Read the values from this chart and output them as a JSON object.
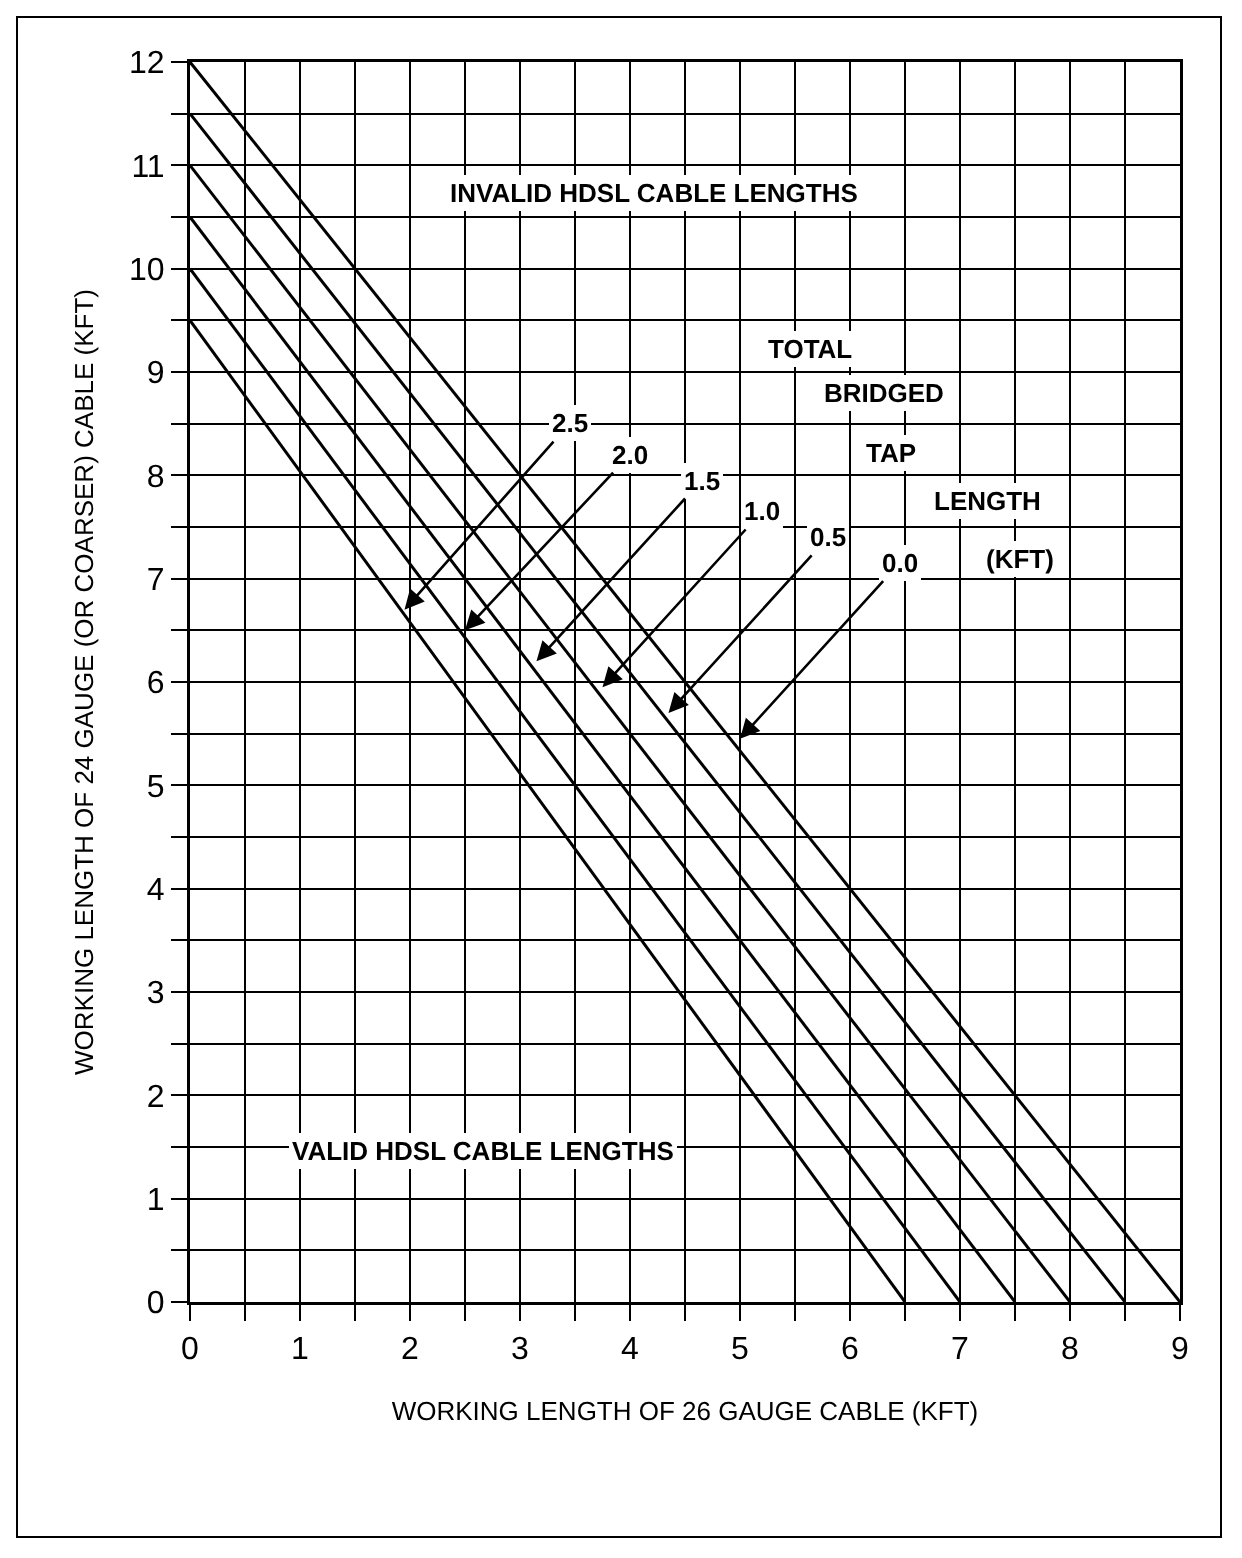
{
  "chart_data": {
    "type": "line",
    "xlabel": "WORKING LENGTH OF 26 GAUGE CABLE (KFT)",
    "ylabel": "WORKING LENGTH OF 24 GAUGE (OR COARSER) CABLE (KFT)",
    "series": [
      {
        "color": "#000000",
        "x": [
          0,
          9
        ],
        "values": [
          12,
          0
        ]
      },
      {
        "color": "#000000",
        "x": [
          0,
          8.5
        ],
        "values": [
          11.5,
          0
        ]
      },
      {
        "color": "#000000",
        "x": [
          0,
          8
        ],
        "values": [
          11,
          0
        ]
      },
      {
        "color": "#000000",
        "x": [
          0,
          7.5
        ],
        "values": [
          10.5,
          0
        ]
      },
      {
        "color": "#000000",
        "x": [
          0,
          7
        ],
        "values": [
          10,
          0
        ]
      },
      {
        "color": "#000000",
        "x": [
          0,
          6.5
        ],
        "values": [
          9.5,
          0
        ]
      }
    ],
    "xlim": [
      0,
      9
    ],
    "ylim": [
      0,
      12
    ],
    "xticks": [
      0,
      {
        "value": 0.5,
        "label": null
      },
      1,
      {
        "value": 1.5,
        "label": null
      },
      2,
      {
        "value": 2.5,
        "label": null
      },
      3,
      {
        "value": 3.5,
        "label": null
      },
      4,
      {
        "value": 4.5,
        "label": null
      },
      5,
      {
        "value": 5.5,
        "label": null
      },
      6,
      {
        "value": 6.5,
        "label": null
      },
      7,
      {
        "value": 7.5,
        "label": null
      },
      8,
      {
        "value": 8.5,
        "label": null
      },
      9
    ],
    "yticks": [
      0,
      {
        "value": 0.5,
        "label": null
      },
      1,
      {
        "value": 1.5,
        "label": null
      },
      2,
      {
        "value": 2.5,
        "label": null
      },
      3,
      {
        "value": 3.5,
        "label": null
      },
      4,
      {
        "value": 4.5,
        "label": null
      },
      5,
      {
        "value": 5.5,
        "label": null
      },
      6,
      {
        "value": 6.5,
        "label": null
      },
      7,
      {
        "value": 7.5,
        "label": null
      },
      8,
      {
        "value": 8.5,
        "label": null
      },
      9,
      {
        "value": 9.5,
        "label": null
      },
      10,
      {
        "value": 10.5,
        "label": null
      },
      11,
      {
        "value": 11.5,
        "label": null
      },
      12
    ],
    "grid": true,
    "marker": "none",
    "line_style": "solid",
    "annotations": [
      {
        "text": "2.5",
        "x": 1.95,
        "y": 6.7
      },
      {
        "text": "2.0",
        "x": 2.5,
        "y": 6.5
      },
      {
        "text": "1.5",
        "x": 3.15,
        "y": 6.2
      },
      {
        "text": "1.0",
        "x": 3.75,
        "y": 5.95
      },
      {
        "text": "0.5",
        "x": 4.35,
        "y": 5.7
      },
      {
        "text": "0.0",
        "x": 5.0,
        "y": 5.45
      },
      "INVALID HDSL CABLE LENGTHS",
      "TOTAL",
      "BRIDGED",
      "TAP",
      "LENGTH",
      "(KFT)",
      "VALID HDSL CABLE LENGTHS"
    ]
  }
}
